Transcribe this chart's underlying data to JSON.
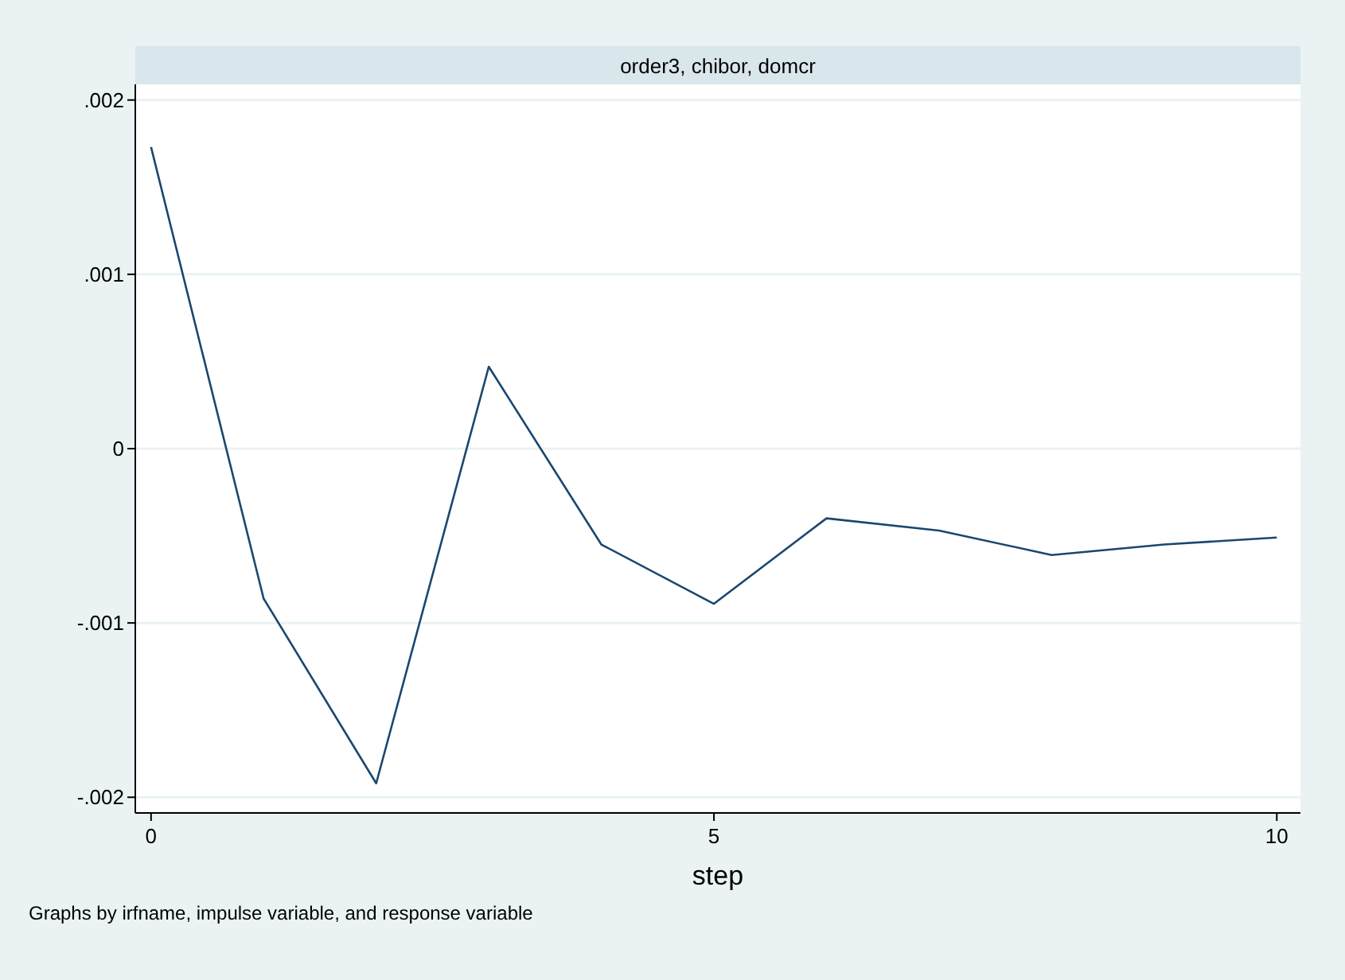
{
  "chart_data": {
    "type": "line",
    "title": "order3, chibor, domcr",
    "xlabel": "step",
    "annotations": [
      "Graphs by irfname, impulse variable, and response variable"
    ],
    "x": [
      0,
      1,
      2,
      3,
      4,
      5,
      6,
      7,
      8,
      9,
      10
    ],
    "series": [
      {
        "color": "#1a476f",
        "values": [
          0.00173,
          -0.00086,
          -0.00192,
          0.00047,
          -0.00055,
          -0.00089,
          -0.0004,
          -0.00047,
          -0.00061,
          -0.00055,
          -0.00051
        ]
      }
    ],
    "xlim": [
      -0.14,
      10.21
    ],
    "ylim": [
      -0.00209,
      0.00209
    ],
    "xticks": [
      0,
      5,
      10
    ],
    "yticks": [
      {
        "value": -0.002,
        "label": "-.002"
      },
      {
        "value": -0.001,
        "label": "-.001"
      },
      0,
      {
        "value": 0.001,
        "label": ".001"
      },
      {
        "value": 0.002,
        "label": ".002"
      }
    ],
    "grid": "y",
    "marker": "none",
    "line_style": "solid"
  }
}
